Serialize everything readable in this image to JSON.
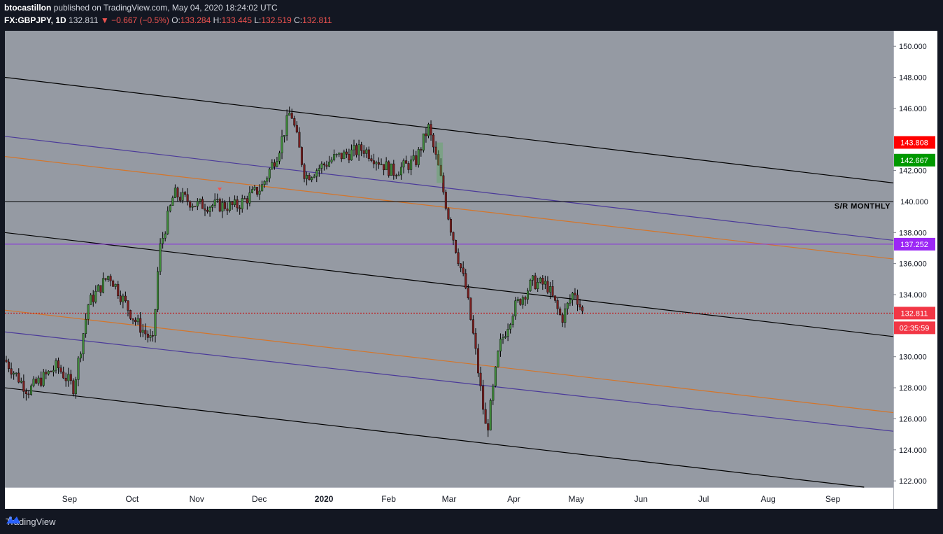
{
  "header": {
    "author": "btocastillon",
    "published_text": "published on TradingView.com, May 04, 2020 18:24:02 UTC",
    "symbol": "FX:GBPJPY, 1D",
    "price": "132.811",
    "change_arrow": "▼",
    "change": "−0.667 (−0.5%)",
    "open_label": "O:",
    "open": "133.284",
    "high_label": "H:",
    "high": "133.445",
    "low_label": "L:",
    "low": "132.519",
    "close_label": "C:",
    "close": "132.811"
  },
  "footer": {
    "brand": "TradingView",
    "icon": "tradingview-logo-icon"
  },
  "colors": {
    "background": "#131722",
    "plot_bg": "#959aa3",
    "axis_bg": "#ffffff",
    "bull": "#3f8a3a",
    "bear": "#7a1f1f",
    "price_line": "#cc0000",
    "orange": "#d4752a",
    "purple_channel": "#4b3a9a",
    "magenta": "#8a2be2"
  },
  "chart_data": {
    "type": "candlestick",
    "symbol": "FX:GBPJPY",
    "timeframe": "1D",
    "x_ticks": [
      "Sep",
      "Oct",
      "Nov",
      "Dec",
      "2020",
      "Feb",
      "Mar",
      "Apr",
      "May",
      "Jun",
      "Jul",
      "Aug",
      "Sep"
    ],
    "y_ticks": [
      "150.000",
      "148.000",
      "146.000",
      "142.000",
      "138.000",
      "136.000",
      "134.000",
      "130.000",
      "128.000",
      "126.000",
      "124.000",
      "122.000"
    ],
    "ylim": [
      121.6,
      151
    ],
    "price_labels": [
      {
        "value": "143.808",
        "color": "#ff0000"
      },
      {
        "value": "142.667",
        "color": "#009900"
      },
      {
        "value": "140.000",
        "color": "#ffffff"
      },
      {
        "value": "137.252",
        "color": "#9c27f5"
      },
      {
        "value": "132.811",
        "color": "#f23645"
      },
      {
        "value": "02:35:59",
        "color": "#f23645"
      }
    ],
    "annotations": {
      "sr_label": "S/R MONTHLY",
      "sr_level": 140.0,
      "magenta_level": 137.252,
      "last_price": 132.811
    },
    "trendlines": [
      {
        "name": "upper-black",
        "color": "#000000",
        "from": [
          "2019-08-01",
          148.0
        ],
        "to": [
          "2020-09-30",
          141.2
        ]
      },
      {
        "name": "mid-black",
        "color": "#000000",
        "from": [
          "2019-08-01",
          138.0
        ],
        "to": [
          "2020-09-30",
          131.3
        ]
      },
      {
        "name": "lower-black",
        "color": "#000000",
        "from": [
          "2019-08-01",
          128.0
        ],
        "to": [
          "2020-09-16",
          121.6
        ]
      },
      {
        "name": "upper-purple",
        "color": "#4b3a9a",
        "from": [
          "2019-08-01",
          144.2
        ],
        "to": [
          "2020-09-30",
          137.5
        ]
      },
      {
        "name": "upper-orange",
        "color": "#d4752a",
        "from": [
          "2019-08-01",
          142.9
        ],
        "to": [
          "2020-09-30",
          136.3
        ]
      },
      {
        "name": "lower-orange",
        "color": "#d4752a",
        "from": [
          "2019-08-01",
          133.0
        ],
        "to": [
          "2020-09-30",
          126.4
        ]
      },
      {
        "name": "lower-purple",
        "color": "#4b3a9a",
        "from": [
          "2019-08-01",
          131.6
        ],
        "to": [
          "2020-09-30",
          125.2
        ]
      }
    ],
    "close_anchors": [
      [
        "2019-08-01",
        129.8
      ],
      [
        "2019-08-12",
        127.8
      ],
      [
        "2019-08-26",
        129.4
      ],
      [
        "2019-09-03",
        128.0
      ],
      [
        "2019-09-10",
        133.4
      ],
      [
        "2019-09-20",
        135.3
      ],
      [
        "2019-10-02",
        132.4
      ],
      [
        "2019-10-11",
        130.9
      ],
      [
        "2019-10-14",
        136.8
      ],
      [
        "2019-10-21",
        140.5
      ],
      [
        "2019-11-01",
        139.8
      ],
      [
        "2019-11-20",
        139.7
      ],
      [
        "2019-12-02",
        140.9
      ],
      [
        "2019-12-10",
        143.2
      ],
      [
        "2019-12-16",
        145.9
      ],
      [
        "2019-12-23",
        141.6
      ],
      [
        "2020-01-06",
        142.8
      ],
      [
        "2020-01-20",
        143.4
      ],
      [
        "2020-02-03",
        141.9
      ],
      [
        "2020-02-14",
        142.6
      ],
      [
        "2020-02-20",
        144.8
      ],
      [
        "2020-02-25",
        142.1
      ],
      [
        "2020-03-02",
        138.2
      ],
      [
        "2020-03-09",
        134.4
      ],
      [
        "2020-03-13",
        131.0
      ],
      [
        "2020-03-19",
        125.0
      ],
      [
        "2020-03-25",
        130.6
      ],
      [
        "2020-04-01",
        133.1
      ],
      [
        "2020-04-10",
        134.8
      ],
      [
        "2020-04-17",
        134.6
      ],
      [
        "2020-04-24",
        132.4
      ],
      [
        "2020-04-30",
        134.3
      ],
      [
        "2020-05-04",
        132.811
      ]
    ]
  }
}
